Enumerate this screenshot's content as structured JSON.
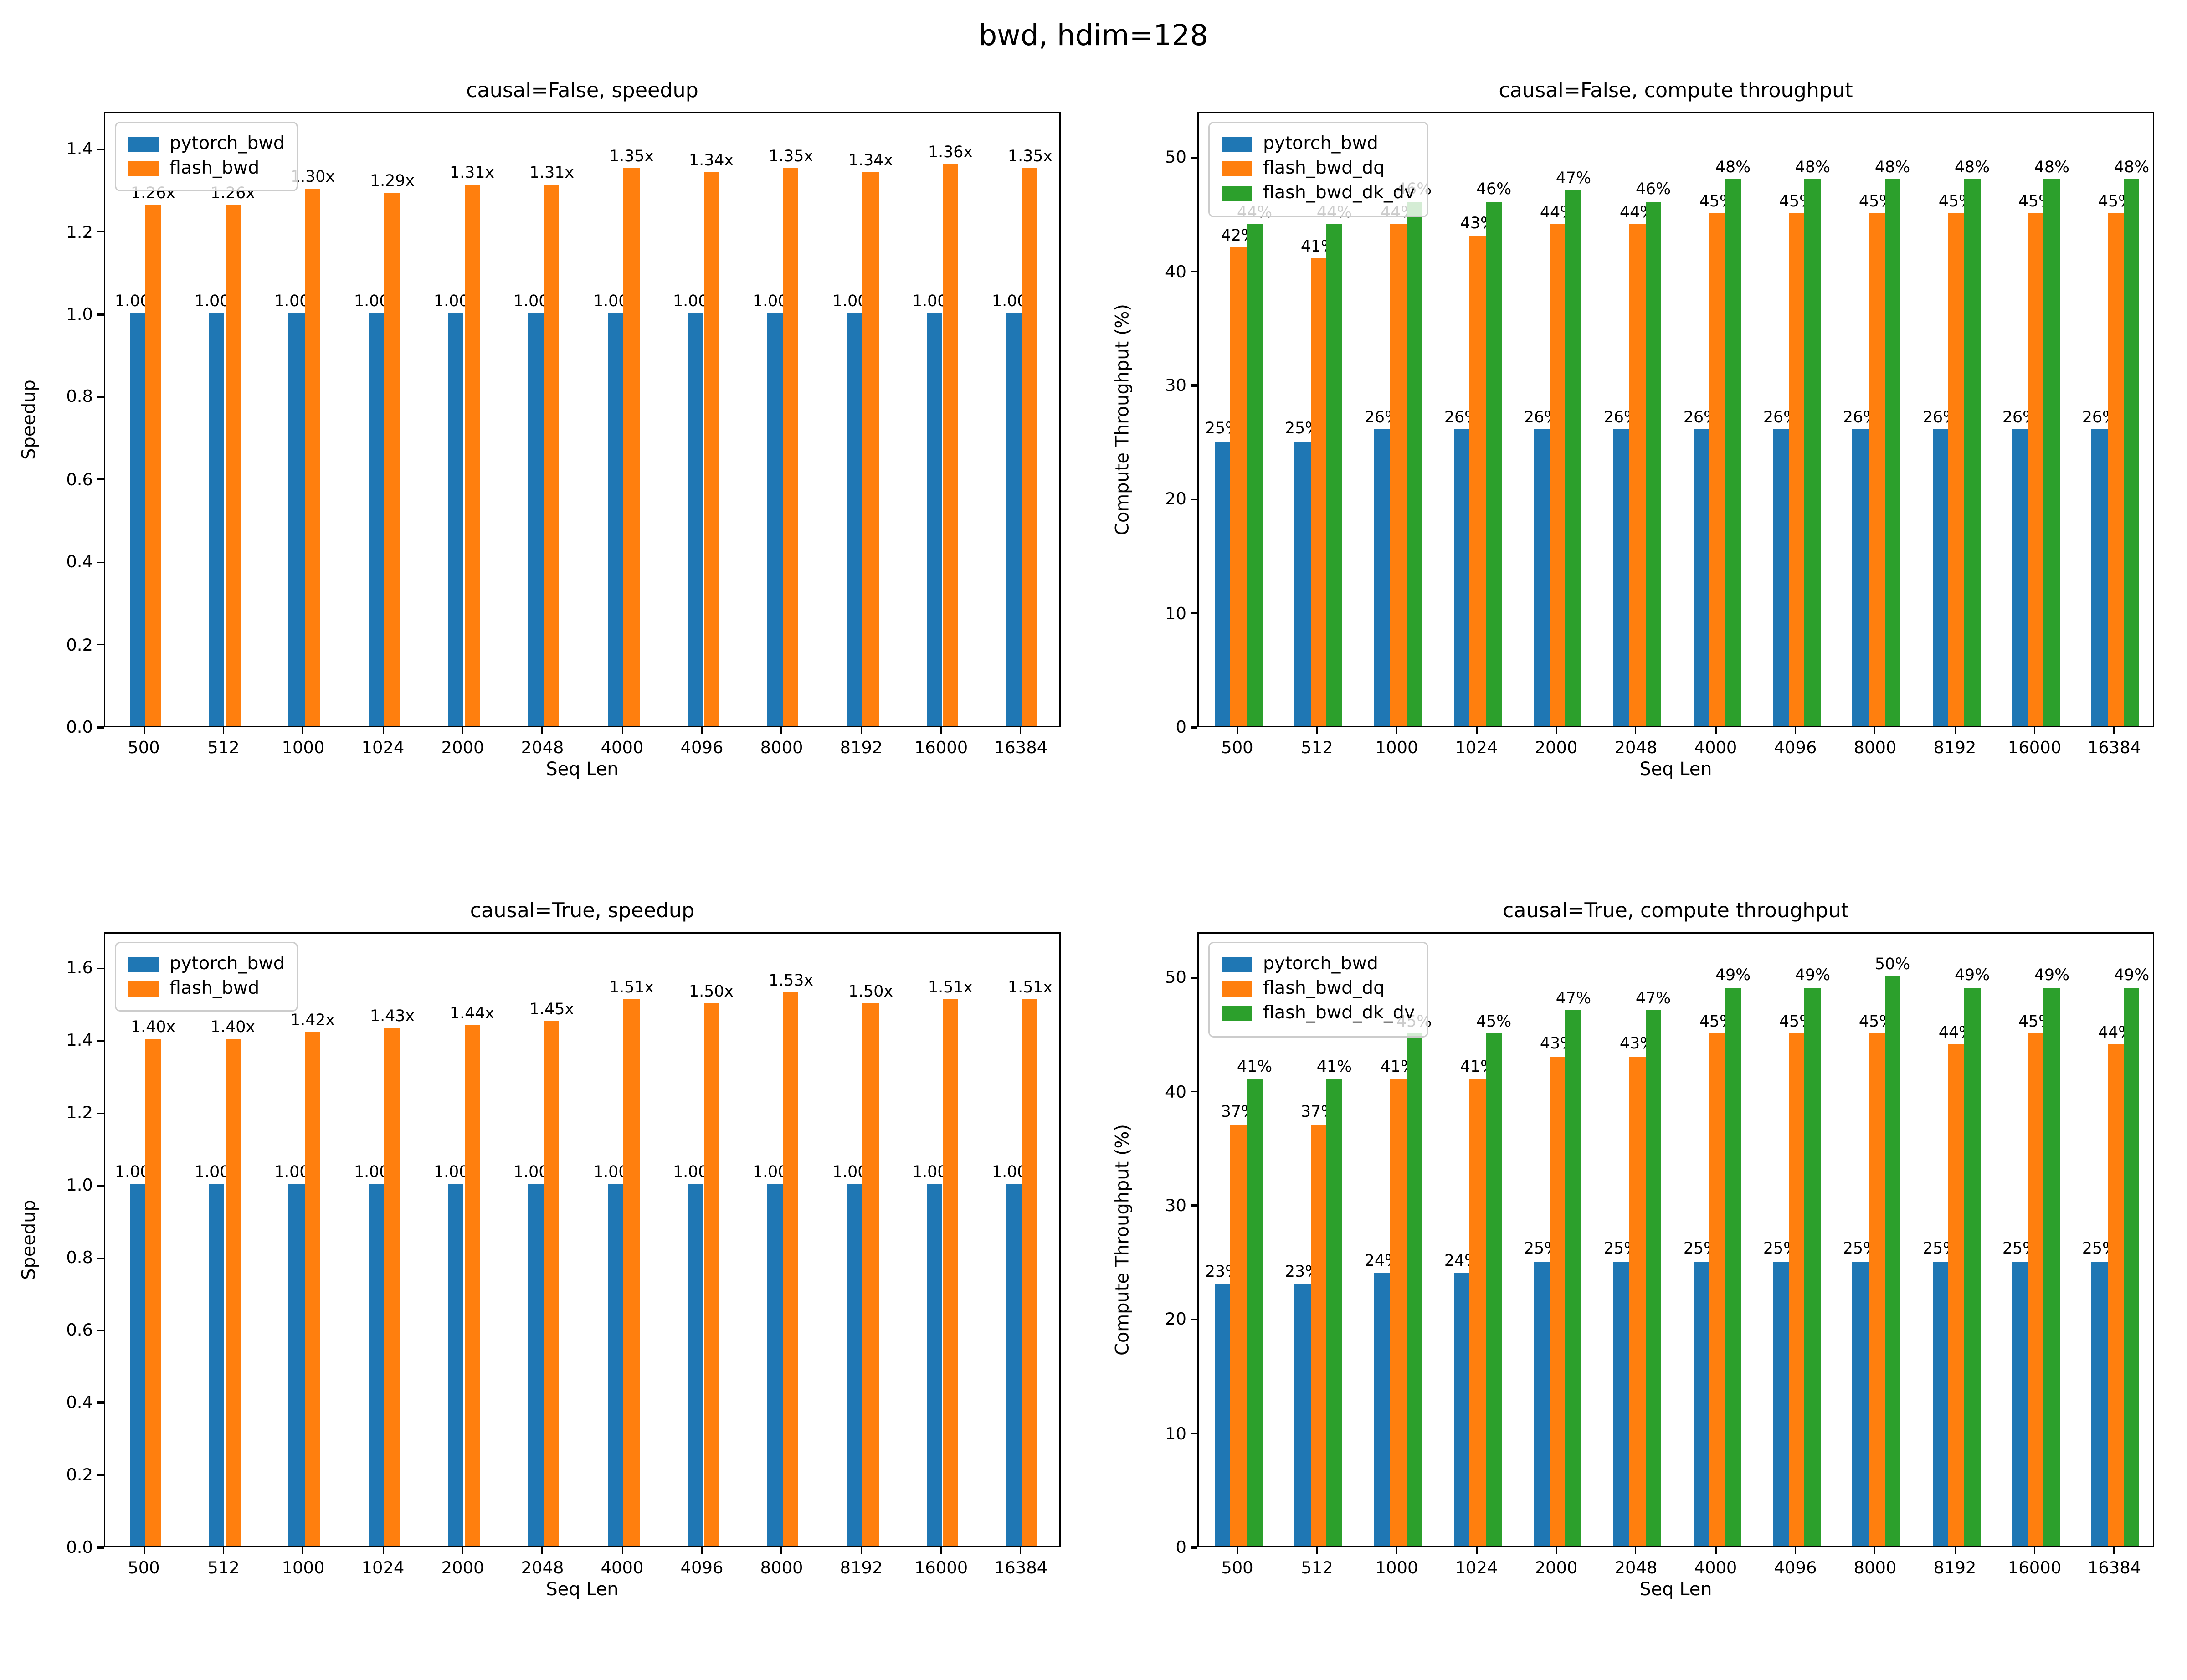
{
  "figure_title": "bwd, hdim=128",
  "colors": {
    "blue": "#1f77b4",
    "orange": "#ff7f0e",
    "green": "#2ca02c"
  },
  "chart_data": [
    {
      "id": "causal-false-speedup",
      "type": "bar",
      "title": "causal=False, speedup",
      "xlabel": "Seq Len",
      "ylabel": "Speedup",
      "categories": [
        "500",
        "512",
        "1000",
        "1024",
        "2000",
        "2048",
        "4000",
        "4096",
        "8000",
        "8192",
        "16000",
        "16384"
      ],
      "yticks": [
        "0.0",
        "0.2",
        "0.4",
        "0.6",
        "0.8",
        "1.0",
        "1.2",
        "1.4"
      ],
      "ytick_values": [
        0,
        0.2,
        0.4,
        0.6,
        0.8,
        1.0,
        1.2,
        1.4
      ],
      "ylim": [
        0,
        1.49
      ],
      "grid": false,
      "legend_position": "upper-left",
      "series": [
        {
          "name": "pytorch_bwd",
          "color": "#1f77b4",
          "values": [
            1.0,
            1.0,
            1.0,
            1.0,
            1.0,
            1.0,
            1.0,
            1.0,
            1.0,
            1.0,
            1.0,
            1.0
          ],
          "labels": [
            "1.00x",
            "1.00x",
            "1.00x",
            "1.00x",
            "1.00x",
            "1.00x",
            "1.00x",
            "1.00x",
            "1.00x",
            "1.00x",
            "1.00x",
            "1.00x"
          ]
        },
        {
          "name": "flash_bwd",
          "color": "#ff7f0e",
          "values": [
            1.26,
            1.26,
            1.3,
            1.29,
            1.31,
            1.31,
            1.35,
            1.34,
            1.35,
            1.34,
            1.36,
            1.35
          ],
          "labels": [
            "1.26x",
            "1.26x",
            "1.30x",
            "1.29x",
            "1.31x",
            "1.31x",
            "1.35x",
            "1.34x",
            "1.35x",
            "1.34x",
            "1.36x",
            "1.35x"
          ]
        }
      ]
    },
    {
      "id": "causal-false-compute-throughput",
      "type": "bar",
      "title": "causal=False, compute throughput",
      "xlabel": "Seq Len",
      "ylabel": "Compute Throughput (%)",
      "categories": [
        "500",
        "512",
        "1000",
        "1024",
        "2000",
        "2048",
        "4000",
        "4096",
        "8000",
        "8192",
        "16000",
        "16384"
      ],
      "yticks": [
        "0",
        "10",
        "20",
        "30",
        "40",
        "50"
      ],
      "ytick_values": [
        0,
        10,
        20,
        30,
        40,
        50
      ],
      "ylim": [
        0,
        54
      ],
      "grid": false,
      "legend_position": "upper-left",
      "series": [
        {
          "name": "pytorch_bwd",
          "color": "#1f77b4",
          "values": [
            25,
            25,
            26,
            26,
            26,
            26,
            26,
            26,
            26,
            26,
            26,
            26
          ],
          "labels": [
            "25%",
            "25%",
            "26%",
            "26%",
            "26%",
            "26%",
            "26%",
            "26%",
            "26%",
            "26%",
            "26%",
            "26%"
          ]
        },
        {
          "name": "flash_bwd_dq",
          "color": "#ff7f0e",
          "values": [
            42,
            41,
            44,
            43,
            44,
            44,
            45,
            45,
            45,
            45,
            45,
            45
          ],
          "labels": [
            "42%",
            "41%",
            "44%",
            "43%",
            "44%",
            "44%",
            "45%",
            "45%",
            "45%",
            "45%",
            "45%",
            "45%"
          ]
        },
        {
          "name": "flash_bwd_dk_dv",
          "color": "#2ca02c",
          "values": [
            44,
            44,
            46,
            46,
            47,
            46,
            48,
            48,
            48,
            48,
            48,
            48
          ],
          "labels": [
            "44%",
            "44%",
            "46%",
            "46%",
            "47%",
            "46%",
            "48%",
            "48%",
            "48%",
            "48%",
            "48%",
            "48%"
          ]
        }
      ]
    },
    {
      "id": "causal-true-speedup",
      "type": "bar",
      "title": "causal=True, speedup",
      "xlabel": "Seq Len",
      "ylabel": "Speedup",
      "categories": [
        "500",
        "512",
        "1000",
        "1024",
        "2000",
        "2048",
        "4000",
        "4096",
        "8000",
        "8192",
        "16000",
        "16384"
      ],
      "yticks": [
        "0.0",
        "0.2",
        "0.4",
        "0.6",
        "0.8",
        "1.0",
        "1.2",
        "1.4",
        "1.6"
      ],
      "ytick_values": [
        0,
        0.2,
        0.4,
        0.6,
        0.8,
        1.0,
        1.2,
        1.4,
        1.6
      ],
      "ylim": [
        0,
        1.7
      ],
      "grid": false,
      "legend_position": "upper-left",
      "series": [
        {
          "name": "pytorch_bwd",
          "color": "#1f77b4",
          "values": [
            1.0,
            1.0,
            1.0,
            1.0,
            1.0,
            1.0,
            1.0,
            1.0,
            1.0,
            1.0,
            1.0,
            1.0
          ],
          "labels": [
            "1.00x",
            "1.00x",
            "1.00x",
            "1.00x",
            "1.00x",
            "1.00x",
            "1.00x",
            "1.00x",
            "1.00x",
            "1.00x",
            "1.00x",
            "1.00x"
          ]
        },
        {
          "name": "flash_bwd",
          "color": "#ff7f0e",
          "values": [
            1.4,
            1.4,
            1.42,
            1.43,
            1.44,
            1.45,
            1.51,
            1.5,
            1.53,
            1.5,
            1.51,
            1.51
          ],
          "labels": [
            "1.40x",
            "1.40x",
            "1.42x",
            "1.43x",
            "1.44x",
            "1.45x",
            "1.51x",
            "1.50x",
            "1.53x",
            "1.50x",
            "1.51x",
            "1.51x"
          ]
        }
      ]
    },
    {
      "id": "causal-true-compute-throughput",
      "type": "bar",
      "title": "causal=True, compute throughput",
      "xlabel": "Seq Len",
      "ylabel": "Compute Throughput (%)",
      "categories": [
        "500",
        "512",
        "1000",
        "1024",
        "2000",
        "2048",
        "4000",
        "4096",
        "8000",
        "8192",
        "16000",
        "16384"
      ],
      "yticks": [
        "0",
        "10",
        "20",
        "30",
        "40",
        "50"
      ],
      "ytick_values": [
        0,
        10,
        20,
        30,
        40,
        50
      ],
      "ylim": [
        0,
        54
      ],
      "grid": false,
      "legend_position": "upper-left",
      "series": [
        {
          "name": "pytorch_bwd",
          "color": "#1f77b4",
          "values": [
            23,
            23,
            24,
            24,
            25,
            25,
            25,
            25,
            25,
            25,
            25,
            25
          ],
          "labels": [
            "23%",
            "23%",
            "24%",
            "24%",
            "25%",
            "25%",
            "25%",
            "25%",
            "25%",
            "25%",
            "25%",
            "25%"
          ]
        },
        {
          "name": "flash_bwd_dq",
          "color": "#ff7f0e",
          "values": [
            37,
            37,
            41,
            41,
            43,
            43,
            45,
            45,
            45,
            44,
            45,
            44
          ],
          "labels": [
            "37%",
            "37%",
            "41%",
            "41%",
            "43%",
            "43%",
            "45%",
            "45%",
            "45%",
            "44%",
            "45%",
            "44%"
          ]
        },
        {
          "name": "flash_bwd_dk_dv",
          "color": "#2ca02c",
          "values": [
            41,
            41,
            45,
            45,
            47,
            47,
            49,
            49,
            50,
            49,
            49,
            49
          ],
          "labels": [
            "41%",
            "41%",
            "45%",
            "45%",
            "47%",
            "47%",
            "49%",
            "49%",
            "50%",
            "49%",
            "49%",
            "49%"
          ]
        }
      ]
    }
  ]
}
